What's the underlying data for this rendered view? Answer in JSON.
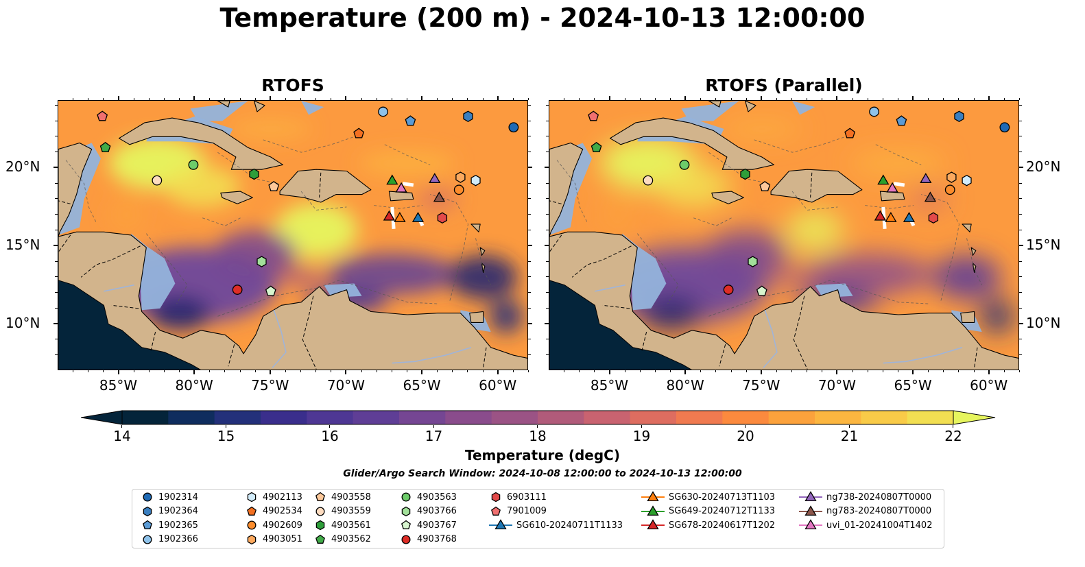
{
  "title": "Temperature (200 m) - 2024-10-13 12:00:00",
  "panels": [
    {
      "id": "left",
      "title": "RTOFS",
      "variant": "a"
    },
    {
      "id": "right",
      "title": "RTOFS (Parallel)",
      "variant": "b"
    }
  ],
  "map_extent": {
    "lon_min": -89,
    "lon_max": -58,
    "lat_min": 7,
    "lat_max": 24.3
  },
  "lon_ticks": [
    "85°W",
    "80°W",
    "75°W",
    "70°W",
    "65°W",
    "60°W"
  ],
  "lat_ticks": [
    "20°N",
    "15°N",
    "10°N"
  ],
  "colors": {
    "land": "#d2b48c",
    "shelf": "#94b3db",
    "deep_land": "#04243a",
    "river": "#a0b4d8",
    "warm": "#fc9a3f",
    "hot": "#e6f55e",
    "cool": "#6e469c",
    "cold": "#2a2870"
  },
  "colorbar": {
    "label": "Temperature (degC)",
    "ticks": [
      "14",
      "15",
      "16",
      "17",
      "18",
      "19",
      "20",
      "21",
      "22"
    ],
    "min": 14,
    "max": 22,
    "colors": [
      "#04243a",
      "#0f2d5e",
      "#23307a",
      "#3a2e8c",
      "#4e3794",
      "#5f3e96",
      "#754693",
      "#8a4c8c",
      "#9b5385",
      "#b15b7a",
      "#c96370",
      "#de6d60",
      "#f07a50",
      "#fc8a3e",
      "#fca23c",
      "#fcb640",
      "#f9cb48",
      "#f2df52"
    ],
    "over_color": "#e6f55e",
    "under_color": "#04243a"
  },
  "search_window": "Glider/Argo Search Window: 2024-10-08 12:00:00 to 2024-10-13 12:00:00",
  "legend": [
    {
      "label": "1902314",
      "marker": "circle",
      "color": "#1f6ab5"
    },
    {
      "label": "1902364",
      "marker": "hexagon",
      "color": "#3a7fc0"
    },
    {
      "label": "1902365",
      "marker": "pentagon",
      "color": "#5b9bd5"
    },
    {
      "label": "1902366",
      "marker": "circle",
      "color": "#8ec2ea"
    },
    {
      "label": "4902113",
      "marker": "hexagon",
      "color": "#d2ecfa"
    },
    {
      "label": "4902534",
      "marker": "pentagon",
      "color": "#f37021"
    },
    {
      "label": "4902609",
      "marker": "circle",
      "color": "#fb8c2c"
    },
    {
      "label": "4903051",
      "marker": "hexagon",
      "color": "#fca95e"
    },
    {
      "label": "4903558",
      "marker": "pentagon",
      "color": "#fdc89a"
    },
    {
      "label": "4903559",
      "marker": "circle",
      "color": "#fddcc0"
    },
    {
      "label": "4903561",
      "marker": "hexagon",
      "color": "#2e9e3a"
    },
    {
      "label": "4903562",
      "marker": "pentagon",
      "color": "#41ab48"
    },
    {
      "label": "4903563",
      "marker": "circle",
      "color": "#6dcc6a"
    },
    {
      "label": "4903766",
      "marker": "hexagon",
      "color": "#a2e09a"
    },
    {
      "label": "4903767",
      "marker": "pentagon",
      "color": "#d7f5cf"
    },
    {
      "label": "4903768",
      "marker": "circle",
      "color": "#de2d26"
    },
    {
      "label": "6903111",
      "marker": "hexagon",
      "color": "#e34a4a"
    },
    {
      "label": "7901009",
      "marker": "pentagon",
      "color": "#f07070"
    },
    {
      "label": "SG610-20240711T1133",
      "marker": "triangle-line",
      "color": "#1f77b4"
    },
    {
      "label": "SG630-20240713T1103",
      "marker": "triangle-line",
      "color": "#ff7f0e"
    },
    {
      "label": "SG649-20240712T1133",
      "marker": "triangle-line",
      "color": "#2ca02c"
    },
    {
      "label": "SG678-20240617T1202",
      "marker": "triangle-line",
      "color": "#d62728"
    },
    {
      "label": "ng738-20240807T0000",
      "marker": "triangle-line",
      "color": "#9467bd"
    },
    {
      "label": "ng783-20240807T0000",
      "marker": "triangle-line",
      "color": "#8c564b"
    },
    {
      "label": "uvi_01-20241004T1402",
      "marker": "triangle-line",
      "color": "#e377c2"
    }
  ],
  "observations": [
    {
      "id": "7901009",
      "lon": -86.1,
      "lat": 23.3
    },
    {
      "id": "4903562",
      "lon": -85.9,
      "lat": 21.3
    },
    {
      "id": "4903563",
      "lon": -80.1,
      "lat": 20.2
    },
    {
      "id": "4903559",
      "lon": -82.5,
      "lat": 19.2
    },
    {
      "id": "4903561",
      "lon": -76.1,
      "lat": 19.6
    },
    {
      "id": "4903558",
      "lon": -74.8,
      "lat": 18.8
    },
    {
      "id": "1902366",
      "lon": -67.6,
      "lat": 23.6
    },
    {
      "id": "1902365",
      "lon": -65.8,
      "lat": 23.0
    },
    {
      "id": "1902364",
      "lon": -62.0,
      "lat": 23.3
    },
    {
      "id": "1902314",
      "lon": -59.0,
      "lat": 22.6
    },
    {
      "id": "4902534",
      "lon": -69.2,
      "lat": 22.2
    },
    {
      "id": "4903051",
      "lon": -62.5,
      "lat": 19.4
    },
    {
      "id": "4902113",
      "lon": -61.5,
      "lat": 19.2
    },
    {
      "id": "4902609",
      "lon": -62.6,
      "lat": 18.6
    },
    {
      "id": "6903111",
      "lon": -63.7,
      "lat": 16.8
    },
    {
      "id": "4903766",
      "lon": -75.6,
      "lat": 14.0
    },
    {
      "id": "4903767",
      "lon": -75.0,
      "lat": 12.1
    },
    {
      "id": "4903768",
      "lon": -77.2,
      "lat": 12.2
    },
    {
      "id": "SG649-20240712T1133",
      "lon": -67.0,
      "lat": 19.2
    },
    {
      "id": "ng738-20240807T0000",
      "lon": -64.2,
      "lat": 19.3
    },
    {
      "id": "uvi_01-20241004T1402",
      "lon": -66.4,
      "lat": 18.7
    },
    {
      "id": "ng783-20240807T0000",
      "lon": -63.9,
      "lat": 18.1
    },
    {
      "id": "SG678-20240617T1202",
      "lon": -67.2,
      "lat": 16.9
    },
    {
      "id": "SG630-20240713T1103",
      "lon": -66.5,
      "lat": 16.8
    },
    {
      "id": "SG610-20240711T1133",
      "lon": -65.3,
      "lat": 16.8
    }
  ]
}
